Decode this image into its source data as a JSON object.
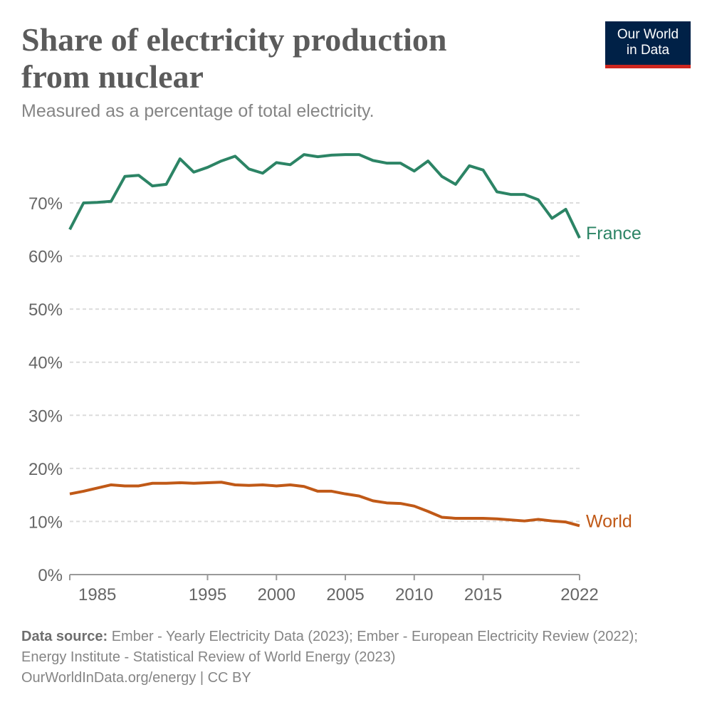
{
  "header": {
    "title": "Share of electricity production from nuclear",
    "subtitle": "Measured as a percentage of total electricity.",
    "logo": {
      "line1": "Our World",
      "line2": "in Data",
      "bg_color": "#002147",
      "accent_color": "#ce261e"
    }
  },
  "footer": {
    "source_label": "Data source:",
    "source_text": "Ember - Yearly Electricity Data (2023); Ember - European Electricity Review (2022); Energy Institute - Statistical Review of World Energy (2023)",
    "credit": "OurWorldInData.org/energy | CC BY"
  },
  "chart_data": {
    "type": "line",
    "title": "Share of electricity production from nuclear",
    "subtitle": "Measured as a percentage of total electricity.",
    "xlim": [
      1985,
      2022
    ],
    "ylim": [
      0,
      80
    ],
    "y_ticks": [
      0,
      10,
      20,
      30,
      40,
      50,
      60,
      70
    ],
    "y_tick_labels": [
      "0%",
      "10%",
      "20%",
      "30%",
      "40%",
      "50%",
      "60%",
      "70%"
    ],
    "x_ticks": [
      1985,
      1995,
      2000,
      2005,
      2010,
      2015,
      2022
    ],
    "x_tick_labels": [
      "1985",
      "1995",
      "2000",
      "2005",
      "2010",
      "2015",
      "2022"
    ],
    "grid": "horizontal dashed",
    "legend": "inline labels at line ends",
    "x": [
      1985,
      1986,
      1987,
      1988,
      1989,
      1990,
      1991,
      1992,
      1993,
      1994,
      1995,
      1996,
      1997,
      1998,
      1999,
      2000,
      2001,
      2002,
      2003,
      2004,
      2005,
      2006,
      2007,
      2008,
      2009,
      2010,
      2011,
      2012,
      2013,
      2014,
      2015,
      2016,
      2017,
      2018,
      2019,
      2020,
      2021,
      2022
    ],
    "series": [
      {
        "name": "France",
        "color": "#2c8465",
        "values": [
          65.0,
          70.0,
          70.1,
          70.3,
          75.0,
          75.2,
          73.2,
          73.5,
          78.3,
          75.8,
          76.7,
          77.9,
          78.8,
          76.4,
          75.6,
          77.6,
          77.2,
          79.1,
          78.7,
          79.0,
          79.1,
          79.1,
          78.0,
          77.5,
          77.5,
          76.0,
          77.9,
          75.0,
          73.5,
          77.0,
          76.2,
          72.1,
          71.6,
          71.6,
          70.6,
          67.1,
          68.8,
          63.4
        ]
      },
      {
        "name": "World",
        "color": "#c05917",
        "values": [
          15.2,
          15.7,
          16.3,
          16.9,
          16.7,
          16.7,
          17.2,
          17.2,
          17.3,
          17.2,
          17.3,
          17.4,
          16.9,
          16.8,
          16.9,
          16.7,
          16.9,
          16.6,
          15.7,
          15.7,
          15.2,
          14.8,
          13.9,
          13.5,
          13.4,
          12.9,
          11.9,
          10.8,
          10.6,
          10.6,
          10.6,
          10.5,
          10.3,
          10.1,
          10.4,
          10.1,
          9.9,
          9.2
        ]
      }
    ]
  }
}
